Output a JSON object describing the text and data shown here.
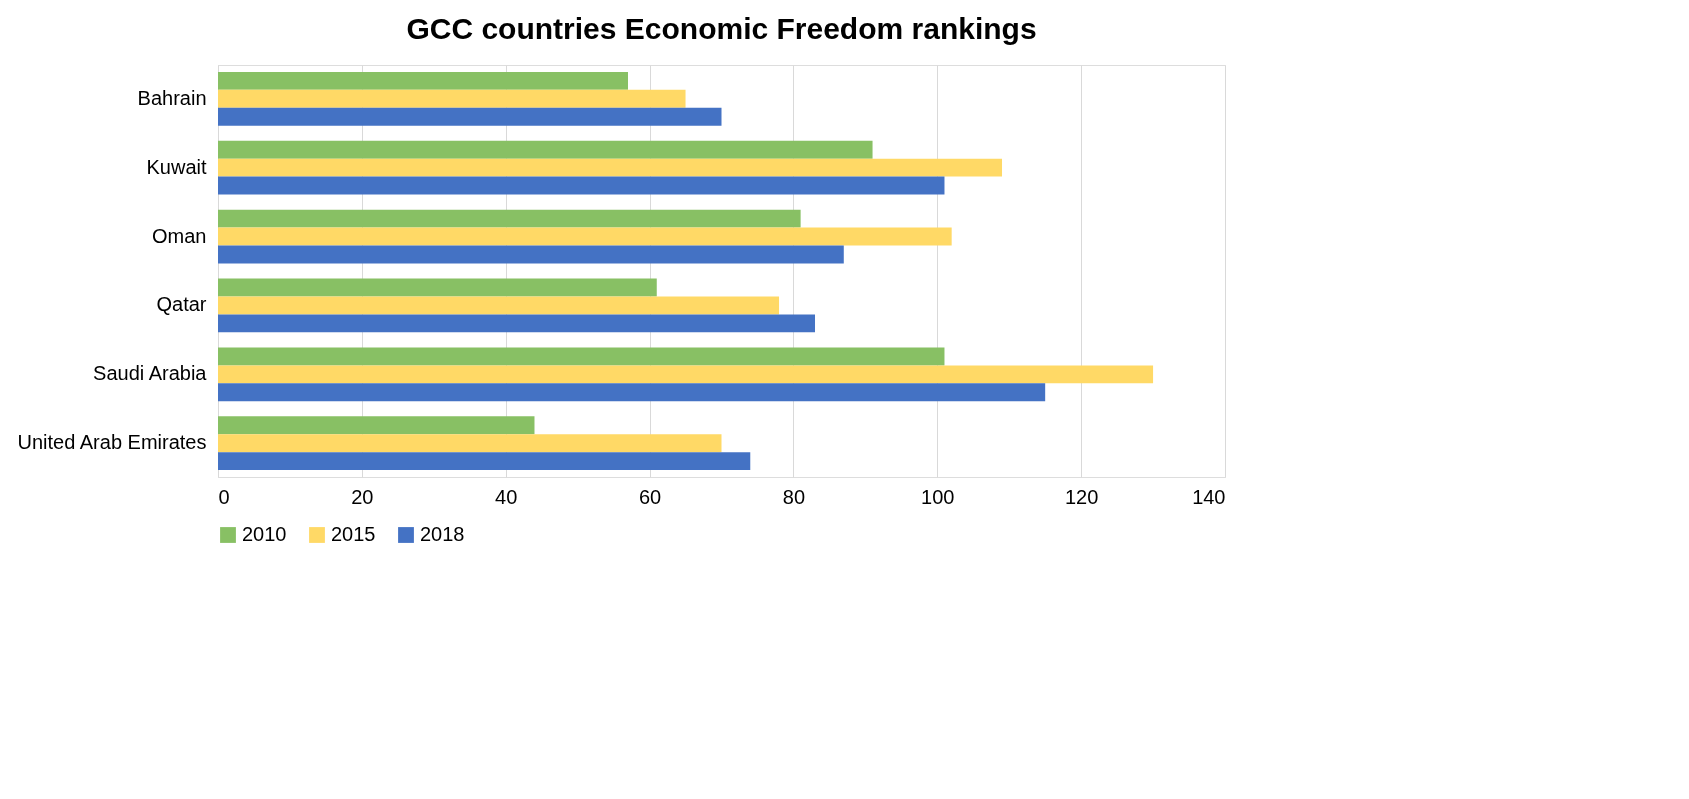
{
  "chart_data": {
    "type": "bar",
    "orientation": "horizontal",
    "title": "GCC countries Economic Freedom rankings",
    "categories": [
      "Bahrain",
      "Kuwait",
      "Oman",
      "Qatar",
      "Saudi Arabia",
      "United Arab Emirates"
    ],
    "series": [
      {
        "name": "2010",
        "color": "#88c064",
        "values": [
          57,
          91,
          81,
          61,
          101,
          44
        ]
      },
      {
        "name": "2015",
        "color": "#ffd966",
        "values": [
          65,
          109,
          102,
          78,
          130,
          70
        ]
      },
      {
        "name": "2018",
        "color": "#4472c4",
        "values": [
          70,
          101,
          87,
          83,
          115,
          74
        ]
      }
    ],
    "xlim": [
      0,
      140
    ],
    "xticks": [
      0,
      20,
      40,
      60,
      80,
      100,
      120,
      140
    ],
    "grid": "x",
    "legend": "bottom"
  }
}
